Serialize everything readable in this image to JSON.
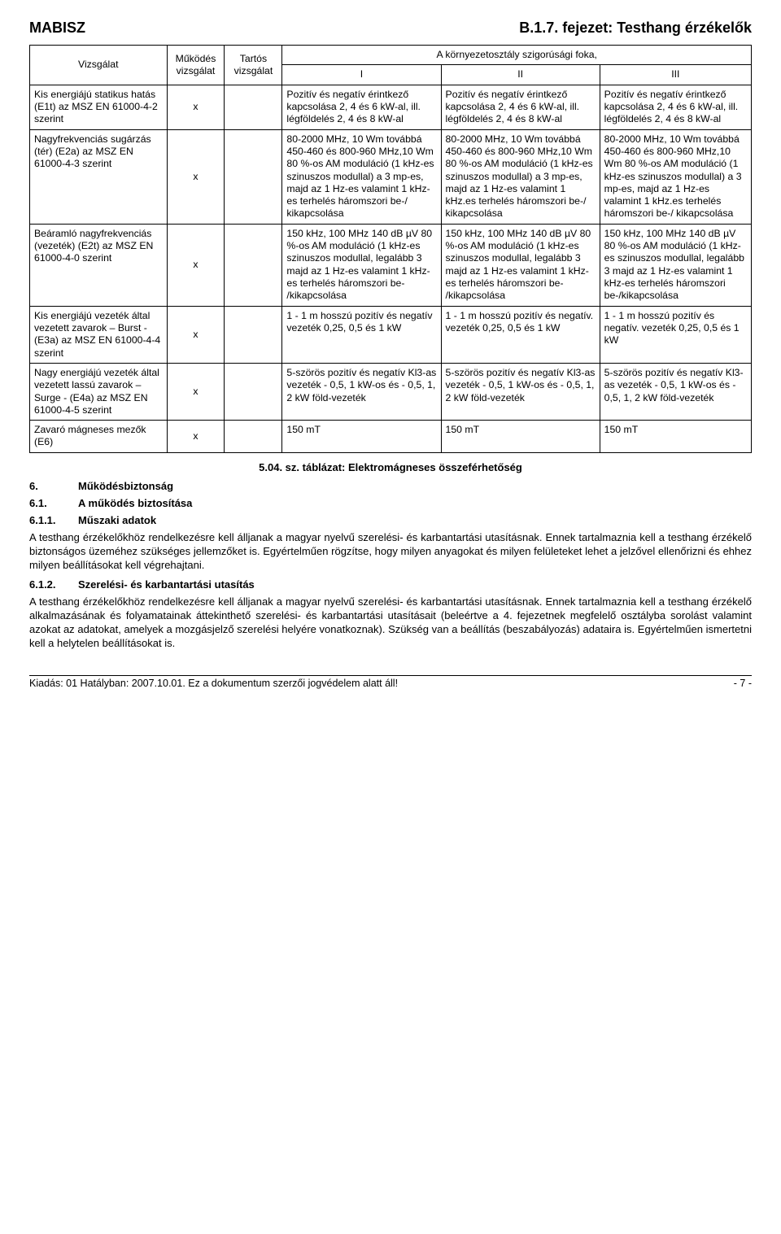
{
  "header": {
    "left": "MABISZ",
    "right": "B.1.7. fejezet: Testhang érzékelők"
  },
  "table": {
    "colhead": {
      "vizsgalat": "Vizsgálat",
      "mukodes": "Működés vizsgálat",
      "tartos": "Tartós vizsgálat",
      "envtitle": "A környezetosztály szigorúsági foka,",
      "i": "I",
      "ii": "II",
      "iii": "III"
    },
    "rows": [
      {
        "c0": "Kis energiájú statikus hatás (E1t) az MSZ EN 61000-4-2 szerint",
        "c1": "x",
        "c2": "",
        "c3": "Pozitív és negatív érintkező kapcsolása 2, 4 és 6 kW-al, ill. légföldelés 2, 4 és 8 kW-al",
        "c4": "Pozitív és negatív érintkező kapcsolása 2, 4 és 6 kW-al, ill. légföldelés 2, 4 és 8 kW-al",
        "c5": "Pozitív és negatív érintkező kapcsolása 2, 4 és 6 kW-al, ill. légföldelés 2, 4 és 8 kW-al"
      },
      {
        "c0": "Nagyfrekvenciás sugárzás (tér) (E2a) az MSZ EN 61000-4-3 szerint",
        "c1": "x",
        "c2": "",
        "c3": "80-2000 MHz, 10 Wm továbbá 450-460 és 800-960 MHz,10 Wm 80 %-os AM moduláció (1 kHz-es szinuszos modullal) a 3 mp-es, majd az 1 Hz-es valamint 1 kHz-es terhelés háromszori be-/ kikapcsolása",
        "c4": "80-2000 MHz, 10 Wm továbbá 450-460 és 800-960 MHz,10 Wm 80 %-os AM moduláció (1 kHz-es szinuszos modullal) a 3 mp-es, majd az 1 Hz-es valamint 1 kHz.es terhelés háromszori be-/ kikapcsolása",
        "c5": "80-2000 MHz, 10 Wm továbbá 450-460 és 800-960 MHz,10 Wm 80 %-os AM moduláció (1 kHz-es szinuszos modullal) a 3 mp-es, majd az 1 Hz-es valamint 1 kHz.es terhelés háromszori be-/ kikapcsolása"
      },
      {
        "c0": "Beáramló nagyfrekvenciás (vezeték) (E2t) az MSZ EN 61000-4-0 szerint",
        "c1": "x",
        "c2": "",
        "c3": "150 kHz, 100 MHz 140 dB µV 80 %-os AM moduláció (1 kHz-es szinuszos modullal, legalább 3 majd az 1 Hz-es valamint 1 kHz-es terhelés háromszori be- /kikapcsolása",
        "c4": "150 kHz, 100 MHz 140 dB µV 80 %-os AM moduláció (1 kHz-es szinuszos modullal, legalább 3 majd az 1 Hz-es valamint 1 kHz-es terhelés háromszori be- /kikapcsolása",
        "c5": "150 kHz, 100 MHz 140 dB µV 80 %-os AM moduláció (1 kHz-es szinuszos modullal, legalább 3 majd az 1 Hz-es valamint 1 kHz-es terhelés háromszori be-/kikapcsolása"
      },
      {
        "c0": "Kis energiájú vezeték által vezetett zavarok – Burst -(E3a) az MSZ EN 61000-4-4 szerint",
        "c1": "x",
        "c2": "",
        "c3": "1 - 1 m hosszú pozitív és negatív vezeték 0,25, 0,5 és 1 kW",
        "c4": "1 - 1 m hosszú pozitív és negatív. vezeték 0,25, 0,5 és 1 kW",
        "c5": "1 - 1 m hosszú pozitív és negatív. vezeték 0,25, 0,5 és 1 kW"
      },
      {
        "c0": "Nagy energiájú vezeték által vezetett lassú zavarok – Surge - (E4a) az MSZ EN 61000-4-5 szerint",
        "c1": "x",
        "c2": "",
        "c3": "5-szörös pozitív és negatív Kl3-as vezeték - 0,5, 1 kW-os és - 0,5, 1, 2 kW föld-vezeték",
        "c4": "5-szörös pozitív és negatív Kl3-as vezeték - 0,5, 1 kW-os és - 0,5, 1, 2 kW föld-vezeték",
        "c5": "5-szörös pozitív és negatív Kl3-as vezeték - 0,5, 1 kW-os és - 0,5, 1, 2 kW föld-vezeték"
      },
      {
        "c0": "Zavaró mágneses mezők (E6)",
        "c1": "x",
        "c2": "",
        "c3": "150 mT",
        "c4": "150 mT",
        "c5": "150 mT"
      }
    ]
  },
  "caption": "5.04. sz. táblázat: Elektromágneses összeférhetőség",
  "sections": {
    "s6": {
      "num": "6.",
      "title": "Működésbiztonság"
    },
    "s61": {
      "num": "6.1.",
      "title": "A működés biztosítása"
    },
    "s611": {
      "num": "6.1.1.",
      "title": "Műszaki adatok"
    },
    "p611": "A testhang érzékelőkhöz rendelkezésre kell álljanak a magyar nyelvű szerelési- és karbantartási utasításnak. Ennek tartalmaznia kell a testhang érzékelő biztonságos üzeméhez szükséges jellemzőket is. Egyértelműen rögzítse, hogy milyen anyagokat és milyen felületeket lehet a jelzővel ellenőrizni és ehhez milyen beállításokat kell végrehajtani.",
    "s612": {
      "num": "6.1.2.",
      "title": "Szerelési- és karbantartási utasítás"
    },
    "p612": "A testhang érzékelőkhöz rendelkezésre kell álljanak a magyar nyelvű szerelési- és karbantartási utasításnak. Ennek tartalmaznia kell a testhang érzékelő alkalmazásának és folyamatainak áttekinthető szerelési- és karbantartási utasításait (beleértve a 4. fejezetnek megfelelő osztályba sorolást valamint azokat az adatokat, amelyek a mozgásjelző szerelési helyére vonatkoznak). Szükség van a beállítás (beszabályozás) adataira is. Egyértelműen ismertetni kell a helytelen beállításokat is."
  },
  "footer": {
    "left": "Kiadás: 01  Hatályban: 2007.10.01.  Ez a dokumentum szerzői jogvédelem alatt áll!",
    "right": "- 7 -"
  }
}
